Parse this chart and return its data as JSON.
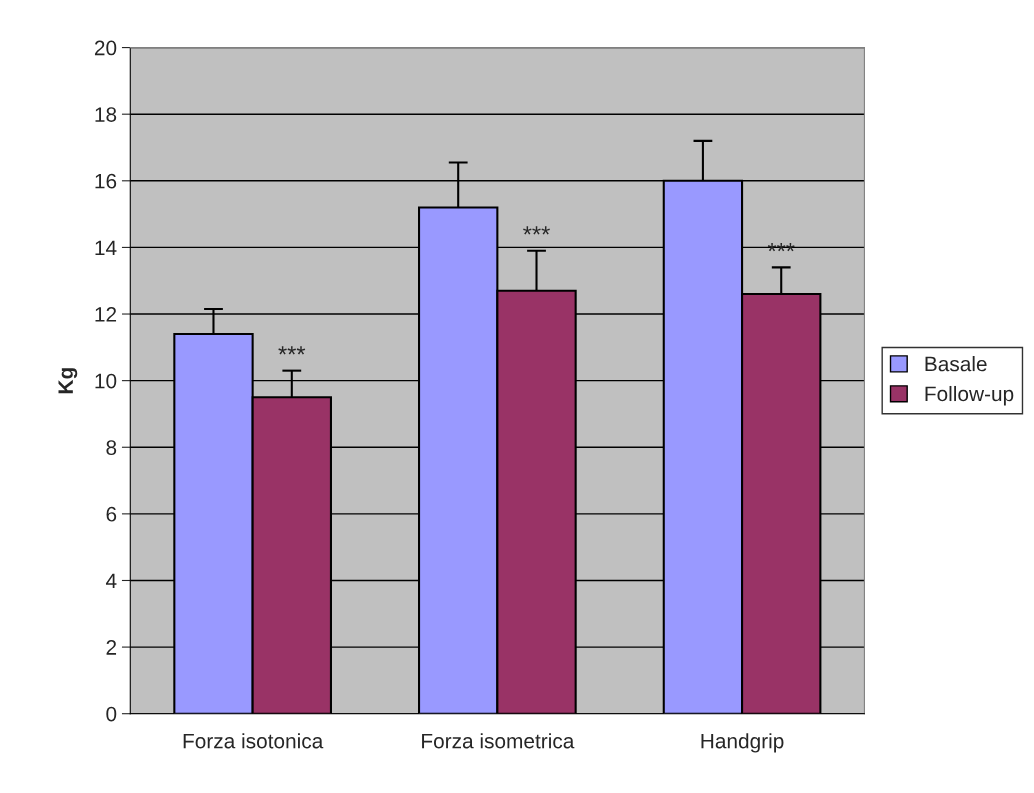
{
  "chart_data": {
    "type": "bar",
    "ylabel": "Kg",
    "categories": [
      "Forza isotonica",
      "Forza isometrica",
      "Handgrip"
    ],
    "series": [
      {
        "name": "Basale",
        "color": "#9999ff",
        "values": [
          11.4,
          15.2,
          16.0
        ],
        "errors": [
          [
            11.4,
            12.15
          ],
          [
            15.2,
            16.55
          ],
          [
            16.0,
            17.2
          ]
        ]
      },
      {
        "name": "Follow-up",
        "color": "#993366",
        "values": [
          9.5,
          12.7,
          12.6
        ],
        "errors": [
          [
            9.5,
            10.3
          ],
          [
            12.7,
            13.9
          ],
          [
            12.6,
            13.4
          ]
        ]
      }
    ],
    "annotations": [
      {
        "text": "***",
        "x": "Forza isotonica",
        "y": 10.3
      },
      {
        "text": "***",
        "x": "Forza isometrica",
        "y": 13.9
      },
      {
        "text": "***",
        "x": "Handgrip",
        "y": 13.4
      }
    ],
    "ylim": [
      0,
      20
    ],
    "yticks": [
      0,
      2,
      4,
      6,
      8,
      10,
      12,
      14,
      16,
      18,
      20
    ],
    "grid": "y",
    "legend": "right"
  }
}
